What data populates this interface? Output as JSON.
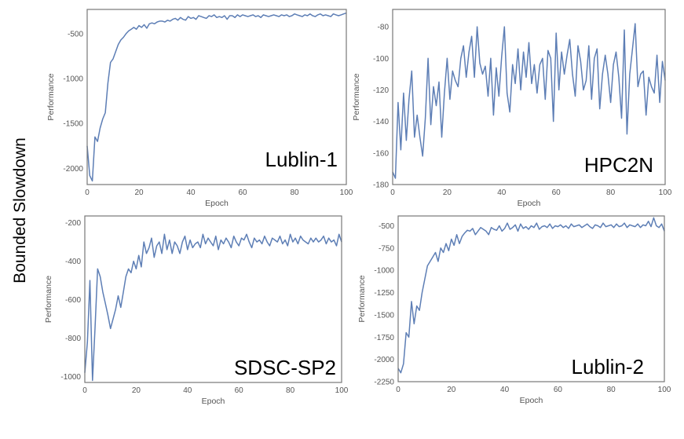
{
  "figure": {
    "ylabel": "Bounded Slowdown"
  },
  "colors": {
    "line": "#5d7eb5",
    "frame": "#777777",
    "background": "#ffffff"
  },
  "chart_data": [
    {
      "type": "line",
      "title": "Lublin-1",
      "xlabel": "Epoch",
      "ylabel": "Performance",
      "xlim": [
        0,
        100
      ],
      "ylim": [
        -2180,
        -230
      ],
      "xticks": [
        0,
        20,
        40,
        60,
        80,
        100
      ],
      "yticks": [
        -2000,
        -1500,
        -1000,
        -500
      ],
      "legend": "none",
      "grid": false,
      "series": [
        {
          "x": [
            0,
            1,
            2,
            3,
            4,
            5,
            6,
            7,
            8,
            9,
            10,
            11,
            12,
            13,
            14,
            15,
            16,
            17,
            18,
            19,
            20,
            21,
            22,
            23,
            24,
            25,
            26,
            27,
            28,
            29,
            30,
            31,
            32,
            33,
            34,
            35,
            36,
            37,
            38,
            39,
            40,
            41,
            42,
            43,
            44,
            45,
            46,
            47,
            48,
            49,
            50,
            51,
            52,
            53,
            54,
            55,
            56,
            57,
            58,
            59,
            60,
            61,
            62,
            63,
            64,
            65,
            66,
            67,
            68,
            69,
            70,
            71,
            72,
            73,
            74,
            75,
            76,
            77,
            78,
            79,
            80,
            81,
            82,
            83,
            84,
            85,
            86,
            87,
            88,
            89,
            90,
            91,
            92,
            93,
            94,
            95,
            96,
            97,
            98,
            99,
            100
          ],
          "values": [
            -1750,
            -2080,
            -2140,
            -1650,
            -1700,
            -1550,
            -1450,
            -1380,
            -1050,
            -820,
            -780,
            -700,
            -620,
            -570,
            -540,
            -500,
            -470,
            -450,
            -430,
            -450,
            -410,
            -430,
            -400,
            -440,
            -390,
            -380,
            -390,
            -370,
            -360,
            -360,
            -370,
            -350,
            -360,
            -340,
            -330,
            -350,
            -320,
            -340,
            -350,
            -310,
            -330,
            -320,
            -340,
            -300,
            -310,
            -320,
            -330,
            -300,
            -310,
            -290,
            -320,
            -310,
            -320,
            -300,
            -340,
            -300,
            -300,
            -320,
            -290,
            -310,
            -290,
            -300,
            -310,
            -300,
            -290,
            -310,
            -300,
            -320,
            -290,
            -300,
            -310,
            -300,
            -290,
            -300,
            -310,
            -290,
            -300,
            -290,
            -310,
            -300,
            -280,
            -290,
            -300,
            -310,
            -290,
            -300,
            -280,
            -300,
            -310,
            -290,
            -280,
            -300,
            -290,
            -300,
            -310,
            -280,
            -290,
            -300,
            -290,
            -280,
            -270
          ]
        }
      ]
    },
    {
      "type": "line",
      "title": "HPC2N",
      "xlabel": "Epoch",
      "ylabel": "Performance",
      "xlim": [
        0,
        100
      ],
      "ylim": [
        -180,
        -69
      ],
      "xticks": [
        0,
        20,
        40,
        60,
        80,
        100
      ],
      "yticks": [
        -180,
        -160,
        -140,
        -120,
        -100,
        -80
      ],
      "legend": "none",
      "grid": false,
      "series": [
        {
          "x": [
            0,
            1,
            2,
            3,
            4,
            5,
            6,
            7,
            8,
            9,
            10,
            11,
            12,
            13,
            14,
            15,
            16,
            17,
            18,
            19,
            20,
            21,
            22,
            23,
            24,
            25,
            26,
            27,
            28,
            29,
            30,
            31,
            32,
            33,
            34,
            35,
            36,
            37,
            38,
            39,
            40,
            41,
            42,
            43,
            44,
            45,
            46,
            47,
            48,
            49,
            50,
            51,
            52,
            53,
            54,
            55,
            56,
            57,
            58,
            59,
            60,
            61,
            62,
            63,
            64,
            65,
            66,
            67,
            68,
            69,
            70,
            71,
            72,
            73,
            74,
            75,
            76,
            77,
            78,
            79,
            80,
            81,
            82,
            83,
            84,
            85,
            86,
            87,
            88,
            89,
            90,
            91,
            92,
            93,
            94,
            95,
            96,
            97,
            98,
            99,
            100
          ],
          "values": [
            -172,
            -176,
            -128,
            -158,
            -122,
            -152,
            -126,
            -108,
            -150,
            -136,
            -150,
            -162,
            -138,
            -100,
            -142,
            -118,
            -130,
            -115,
            -150,
            -122,
            -100,
            -126,
            -108,
            -114,
            -118,
            -100,
            -92,
            -112,
            -96,
            -86,
            -112,
            -80,
            -103,
            -110,
            -105,
            -124,
            -100,
            -136,
            -106,
            -124,
            -99,
            -80,
            -122,
            -134,
            -104,
            -116,
            -94,
            -120,
            -96,
            -112,
            -90,
            -116,
            -104,
            -122,
            -104,
            -100,
            -126,
            -95,
            -100,
            -140,
            -84,
            -120,
            -96,
            -110,
            -98,
            -88,
            -110,
            -124,
            -92,
            -102,
            -120,
            -114,
            -92,
            -126,
            -100,
            -94,
            -132,
            -110,
            -98,
            -110,
            -128,
            -104,
            -96,
            -112,
            -138,
            -82,
            -148,
            -110,
            -94,
            -78,
            -118,
            -110,
            -108,
            -136,
            -112,
            -118,
            -122,
            -98,
            -128,
            -102,
            -114
          ]
        }
      ]
    },
    {
      "type": "line",
      "title": "SDSC-SP2",
      "xlabel": "Epoch",
      "ylabel": "Performance",
      "xlim": [
        0,
        100
      ],
      "ylim": [
        -1030,
        -165
      ],
      "xticks": [
        0,
        20,
        40,
        60,
        80,
        100
      ],
      "yticks": [
        -1000,
        -800,
        -600,
        -400,
        -200
      ],
      "legend": "none",
      "grid": false,
      "series": [
        {
          "x": [
            0,
            1,
            2,
            3,
            4,
            5,
            6,
            7,
            8,
            9,
            10,
            11,
            12,
            13,
            14,
            15,
            16,
            17,
            18,
            19,
            20,
            21,
            22,
            23,
            24,
            25,
            26,
            27,
            28,
            29,
            30,
            31,
            32,
            33,
            34,
            35,
            36,
            37,
            38,
            39,
            40,
            41,
            42,
            43,
            44,
            45,
            46,
            47,
            48,
            49,
            50,
            51,
            52,
            53,
            54,
            55,
            56,
            57,
            58,
            59,
            60,
            61,
            62,
            63,
            64,
            65,
            66,
            67,
            68,
            69,
            70,
            71,
            72,
            73,
            74,
            75,
            76,
            77,
            78,
            79,
            80,
            81,
            82,
            83,
            84,
            85,
            86,
            87,
            88,
            89,
            90,
            91,
            92,
            93,
            94,
            95,
            96,
            97,
            98,
            99,
            100
          ],
          "values": [
            -980,
            -820,
            -500,
            -1020,
            -740,
            -440,
            -480,
            -560,
            -620,
            -680,
            -750,
            -700,
            -650,
            -580,
            -640,
            -560,
            -480,
            -440,
            -460,
            -400,
            -440,
            -370,
            -430,
            -300,
            -360,
            -330,
            -280,
            -380,
            -320,
            -300,
            -360,
            -260,
            -340,
            -290,
            -360,
            -300,
            -320,
            -360,
            -300,
            -270,
            -340,
            -290,
            -330,
            -310,
            -300,
            -330,
            -260,
            -310,
            -280,
            -300,
            -320,
            -270,
            -340,
            -290,
            -310,
            -280,
            -300,
            -330,
            -270,
            -300,
            -320,
            -280,
            -290,
            -260,
            -300,
            -330,
            -280,
            -300,
            -290,
            -310,
            -270,
            -300,
            -320,
            -280,
            -290,
            -300,
            -270,
            -310,
            -290,
            -320,
            -260,
            -300,
            -280,
            -310,
            -270,
            -290,
            -300,
            -310,
            -280,
            -300,
            -280,
            -300,
            -290,
            -270,
            -310,
            -280,
            -300,
            -290,
            -320,
            -260,
            -300
          ]
        }
      ]
    },
    {
      "type": "line",
      "title": "Lublin-2",
      "xlabel": "Epoch",
      "ylabel": "Performance",
      "xlim": [
        0,
        100
      ],
      "ylim": [
        -2250,
        -390
      ],
      "xticks": [
        0,
        20,
        40,
        60,
        80,
        100
      ],
      "yticks": [
        -2250,
        -2000,
        -1750,
        -1500,
        -1250,
        -1000,
        -750,
        -500
      ],
      "legend": "none",
      "grid": false,
      "series": [
        {
          "x": [
            0,
            1,
            2,
            3,
            4,
            5,
            6,
            7,
            8,
            9,
            10,
            11,
            12,
            13,
            14,
            15,
            16,
            17,
            18,
            19,
            20,
            21,
            22,
            23,
            24,
            25,
            26,
            27,
            28,
            29,
            30,
            31,
            32,
            33,
            34,
            35,
            36,
            37,
            38,
            39,
            40,
            41,
            42,
            43,
            44,
            45,
            46,
            47,
            48,
            49,
            50,
            51,
            52,
            53,
            54,
            55,
            56,
            57,
            58,
            59,
            60,
            61,
            62,
            63,
            64,
            65,
            66,
            67,
            68,
            69,
            70,
            71,
            72,
            73,
            74,
            75,
            76,
            77,
            78,
            79,
            80,
            81,
            82,
            83,
            84,
            85,
            86,
            87,
            88,
            89,
            90,
            91,
            92,
            93,
            94,
            95,
            96,
            97,
            98,
            99,
            100
          ],
          "values": [
            -2100,
            -2150,
            -2050,
            -1700,
            -1750,
            -1350,
            -1600,
            -1400,
            -1450,
            -1250,
            -1100,
            -950,
            -900,
            -850,
            -800,
            -900,
            -750,
            -800,
            -700,
            -780,
            -650,
            -720,
            -600,
            -700,
            -620,
            -580,
            -550,
            -560,
            -530,
            -600,
            -560,
            -520,
            -540,
            -560,
            -600,
            -520,
            -540,
            -550,
            -500,
            -560,
            -530,
            -470,
            -540,
            -520,
            -490,
            -560,
            -480,
            -530,
            -510,
            -540,
            -500,
            -520,
            -470,
            -540,
            -510,
            -500,
            -520,
            -480,
            -530,
            -500,
            -510,
            -490,
            -520,
            -500,
            -530,
            -480,
            -510,
            -500,
            -490,
            -520,
            -500,
            -480,
            -510,
            -530,
            -490,
            -500,
            -520,
            -470,
            -510,
            -500,
            -490,
            -520,
            -480,
            -510,
            -500,
            -470,
            -520,
            -490,
            -500,
            -510,
            -480,
            -520,
            -490,
            -500,
            -450,
            -510,
            -410,
            -500,
            -520,
            -480,
            -560
          ]
        }
      ]
    }
  ]
}
